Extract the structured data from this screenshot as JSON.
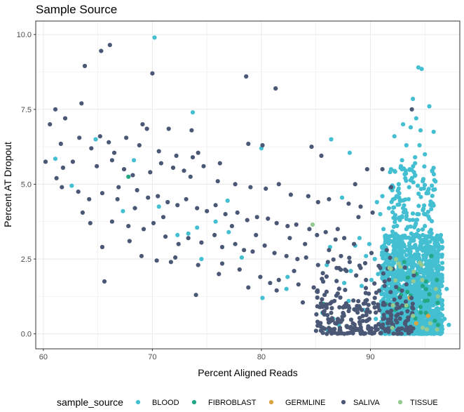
{
  "chart_data": {
    "type": "scatter",
    "title": "Sample Source",
    "xlabel": "Percent Aligned Reads",
    "ylabel": "Percent AT Dropout",
    "xlim": [
      59.3,
      98.2
    ],
    "ylim": [
      -0.5,
      10.45
    ],
    "x_ticks": [
      60,
      70,
      80,
      90
    ],
    "y_ticks": [
      0.0,
      2.5,
      5.0,
      7.5,
      10.0
    ],
    "y_tick_labels": [
      "0.0",
      "2.5",
      "5.0",
      "7.5",
      "10.0"
    ],
    "grid": true,
    "legend_position": "bottom",
    "legend_title": "sample_source",
    "series": [
      {
        "name": "BLOOD",
        "color": "#44bfd2",
        "points": [
          [
            70.2,
            9.9
          ],
          [
            94.4,
            8.9
          ],
          [
            94.7,
            8.85
          ],
          [
            93.9,
            7.85
          ],
          [
            95.4,
            7.6
          ],
          [
            73.7,
            7.4
          ],
          [
            93.0,
            7.0
          ],
          [
            94.6,
            6.8
          ],
          [
            95.8,
            6.75
          ],
          [
            92.2,
            6.6
          ],
          [
            64.8,
            6.5
          ],
          [
            86.4,
            6.5
          ],
          [
            93.3,
            6.3
          ],
          [
            95.0,
            6.0
          ],
          [
            92.9,
            5.8
          ],
          [
            94.1,
            5.7
          ],
          [
            80.0,
            6.2
          ],
          [
            88.1,
            6.05
          ],
          [
            61.1,
            5.85
          ],
          [
            93.6,
            5.5
          ],
          [
            94.0,
            5.4
          ],
          [
            93.2,
            5.2
          ],
          [
            92.6,
            5.0
          ],
          [
            94.8,
            5.1
          ],
          [
            68.3,
            5.8
          ],
          [
            62.6,
            4.95
          ],
          [
            95.3,
            4.7
          ],
          [
            92.4,
            4.6
          ],
          [
            91.1,
            4.6
          ],
          [
            87.4,
            4.55
          ],
          [
            67.3,
            4.1
          ],
          [
            70.6,
            4.25
          ],
          [
            76.9,
            4.45
          ],
          [
            95.6,
            4.3
          ],
          [
            91.7,
            4.2
          ],
          [
            93.0,
            4.2
          ],
          [
            94.3,
            4.0
          ],
          [
            90.6,
            4.4
          ],
          [
            93.6,
            3.8
          ],
          [
            89.0,
            3.2
          ],
          [
            75.8,
            3.75
          ],
          [
            74.1,
            3.55
          ],
          [
            73.3,
            3.35
          ],
          [
            77.0,
            3.4
          ],
          [
            72.3,
            3.3
          ],
          [
            89.9,
            3.0
          ],
          [
            86.3,
            2.9
          ],
          [
            88.6,
            2.95
          ],
          [
            92.1,
            3.1
          ],
          [
            94.8,
            3.3
          ],
          [
            91.5,
            2.8
          ],
          [
            90.4,
            2.5
          ],
          [
            89.6,
            2.6
          ],
          [
            74.5,
            2.5
          ],
          [
            78.2,
            2.55
          ],
          [
            86.0,
            2.3
          ],
          [
            88.2,
            2.1
          ],
          [
            90.7,
            2.0
          ],
          [
            89.2,
            1.6
          ],
          [
            82.3,
            1.5
          ],
          [
            87.6,
            1.7
          ],
          [
            90.1,
            1.8
          ],
          [
            91.8,
            1.5
          ],
          [
            92.4,
            1.2
          ],
          [
            93.1,
            0.9
          ],
          [
            92.0,
            0.6
          ],
          [
            93.8,
            0.4
          ],
          [
            94.6,
            0.2
          ],
          [
            95.6,
            0.1
          ],
          [
            96.4,
            0.05
          ],
          [
            91.3,
            0.3
          ],
          [
            90.5,
            0.5
          ],
          [
            89.4,
            0.8
          ],
          [
            88.0,
            1.1
          ],
          [
            87.1,
            0.3
          ],
          [
            86.6,
            0.5
          ],
          [
            85.6,
            0.7
          ],
          [
            86.1,
            0.1
          ],
          [
            89.1,
            0.05
          ],
          [
            96.8,
            0.5
          ],
          [
            97.2,
            0.3
          ],
          [
            96.1,
            1.2
          ],
          [
            97.0,
            1.5
          ],
          [
            96.6,
            2.2
          ],
          [
            95.2,
            2.8
          ],
          [
            96.4,
            2.9
          ],
          [
            91.2,
            3.5
          ],
          [
            92.7,
            3.8
          ],
          [
            93.3,
            3.5
          ],
          [
            95.0,
            3.6
          ],
          [
            82.4,
            1.9
          ],
          [
            80.1,
            1.2
          ],
          [
            90.9,
            4.0
          ],
          [
            93.5,
            4.5
          ],
          [
            92.1,
            4.9
          ],
          [
            94.1,
            5.9
          ],
          [
            94.5,
            6.3
          ],
          [
            93.7,
            6.9
          ],
          [
            94.2,
            7.2
          ],
          [
            91.9,
            5.5
          ],
          [
            92.8,
            5.6
          ]
        ]
      },
      {
        "name": "FIBROBLAST",
        "color": "#22a884",
        "points": [
          [
            67.8,
            5.25
          ],
          [
            85.7,
            1.0
          ],
          [
            95.1,
            0.7
          ],
          [
            95.6,
            2.6
          ],
          [
            93.4,
            1.4
          ],
          [
            94.2,
            2.0
          ],
          [
            92.6,
            1.5
          ],
          [
            96.1,
            1.8
          ],
          [
            94.6,
            0.9
          ],
          [
            93.1,
            2.4
          ],
          [
            92.8,
            1.3
          ],
          [
            95.0,
            1.1
          ],
          [
            91.4,
            1.0
          ],
          [
            96.2,
            0.3
          ],
          [
            94.8,
            1.6
          ],
          [
            92.3,
            0.8
          ]
        ]
      },
      {
        "name": "GERMLINE",
        "color": "#d9a441",
        "points": [
          [
            94.2,
            0.35
          ],
          [
            93.6,
            1.2
          ],
          [
            95.3,
            0.6
          ]
        ]
      },
      {
        "name": "SALIVA",
        "color": "#4a5876",
        "points": [
          [
            66.1,
            9.65
          ],
          [
            65.3,
            9.45
          ],
          [
            63.8,
            8.95
          ],
          [
            70.0,
            8.7
          ],
          [
            78.6,
            8.6
          ],
          [
            81.3,
            8.2
          ],
          [
            63.5,
            7.7
          ],
          [
            61.1,
            7.5
          ],
          [
            62.0,
            7.2
          ],
          [
            60.6,
            7.0
          ],
          [
            69.1,
            7.0
          ],
          [
            71.5,
            6.85
          ],
          [
            73.6,
            6.8
          ],
          [
            69.5,
            6.85
          ],
          [
            65.2,
            6.6
          ],
          [
            67.6,
            6.55
          ],
          [
            66.0,
            6.4
          ],
          [
            63.3,
            6.55
          ],
          [
            61.6,
            6.35
          ],
          [
            64.4,
            6.2
          ],
          [
            66.5,
            6.05
          ],
          [
            68.8,
            6.3
          ],
          [
            70.6,
            6.1
          ],
          [
            72.2,
            5.95
          ],
          [
            74.2,
            6.05
          ],
          [
            73.7,
            5.9
          ],
          [
            76.2,
            5.7
          ],
          [
            78.8,
            6.35
          ],
          [
            80.1,
            6.3
          ],
          [
            84.6,
            6.25
          ],
          [
            85.5,
            5.95
          ],
          [
            60.2,
            5.75
          ],
          [
            61.8,
            5.55
          ],
          [
            62.7,
            5.75
          ],
          [
            64.9,
            5.6
          ],
          [
            66.3,
            5.8
          ],
          [
            67.4,
            5.5
          ],
          [
            68.2,
            5.3
          ],
          [
            69.8,
            5.4
          ],
          [
            70.8,
            5.7
          ],
          [
            71.9,
            5.55
          ],
          [
            72.9,
            5.45
          ],
          [
            73.5,
            5.25
          ],
          [
            74.7,
            5.6
          ],
          [
            76.0,
            5.1
          ],
          [
            77.6,
            5.0
          ],
          [
            79.0,
            4.9
          ],
          [
            80.4,
            4.85
          ],
          [
            81.6,
            5.0
          ],
          [
            82.7,
            4.65
          ],
          [
            84.3,
            4.6
          ],
          [
            85.2,
            4.4
          ],
          [
            86.2,
            4.5
          ],
          [
            88.0,
            4.35
          ],
          [
            89.1,
            4.25
          ],
          [
            90.2,
            4.05
          ],
          [
            89.7,
            5.5
          ],
          [
            88.6,
            5.0
          ],
          [
            91.1,
            5.5
          ],
          [
            61.2,
            5.2
          ],
          [
            61.7,
            4.9
          ],
          [
            63.2,
            4.75
          ],
          [
            64.2,
            4.5
          ],
          [
            65.4,
            4.7
          ],
          [
            66.9,
            4.9
          ],
          [
            68.6,
            4.8
          ],
          [
            69.6,
            4.55
          ],
          [
            70.5,
            4.6
          ],
          [
            71.4,
            4.4
          ],
          [
            72.3,
            4.3
          ],
          [
            73.1,
            4.5
          ],
          [
            74.1,
            4.2
          ],
          [
            75.0,
            4.1
          ],
          [
            75.8,
            4.3
          ],
          [
            76.7,
            4.0
          ],
          [
            77.8,
            4.05
          ],
          [
            78.7,
            3.8
          ],
          [
            79.6,
            3.9
          ],
          [
            80.6,
            3.85
          ],
          [
            81.4,
            3.7
          ],
          [
            82.4,
            3.6
          ],
          [
            83.2,
            3.65
          ],
          [
            84.4,
            3.5
          ],
          [
            85.1,
            3.3
          ],
          [
            85.9,
            3.4
          ],
          [
            86.8,
            3.15
          ],
          [
            87.6,
            3.2
          ],
          [
            88.5,
            3.0
          ],
          [
            63.6,
            4.05
          ],
          [
            64.3,
            3.7
          ],
          [
            66.3,
            3.75
          ],
          [
            67.8,
            3.6
          ],
          [
            69.2,
            3.5
          ],
          [
            70.1,
            3.7
          ],
          [
            71.2,
            3.25
          ],
          [
            72.4,
            3.0
          ],
          [
            73.3,
            3.2
          ],
          [
            74.5,
            3.05
          ],
          [
            75.7,
            3.3
          ],
          [
            76.4,
            2.9
          ],
          [
            77.6,
            3.0
          ],
          [
            78.4,
            2.8
          ],
          [
            79.2,
            2.75
          ],
          [
            80.3,
            2.95
          ],
          [
            81.2,
            2.7
          ],
          [
            82.3,
            2.6
          ],
          [
            83.3,
            2.5
          ],
          [
            84.1,
            2.55
          ],
          [
            85.2,
            2.3
          ],
          [
            86.1,
            2.4
          ],
          [
            86.9,
            2.2
          ],
          [
            87.8,
            2.1
          ],
          [
            88.7,
            1.95
          ],
          [
            89.6,
            1.8
          ],
          [
            65.4,
            2.9
          ],
          [
            67.9,
            3.1
          ],
          [
            69.0,
            2.6
          ],
          [
            70.4,
            2.45
          ],
          [
            72.1,
            2.55
          ],
          [
            74.2,
            2.3
          ],
          [
            76.1,
            2.0
          ],
          [
            78.0,
            2.15
          ],
          [
            79.9,
            1.9
          ],
          [
            81.6,
            1.8
          ],
          [
            83.4,
            1.65
          ],
          [
            84.8,
            1.55
          ],
          [
            85.8,
            1.3
          ],
          [
            86.7,
            1.1
          ],
          [
            87.7,
            0.9
          ],
          [
            88.6,
            0.8
          ],
          [
            89.3,
            0.6
          ],
          [
            89.9,
            0.5
          ],
          [
            87.2,
            0.1
          ],
          [
            88.3,
            0.05
          ],
          [
            65.6,
            1.75
          ],
          [
            71.7,
            2.4
          ],
          [
            74.0,
            1.3
          ],
          [
            78.8,
            1.55
          ],
          [
            81.4,
            1.45
          ],
          [
            83.8,
            1.05
          ],
          [
            85.4,
            0.9
          ],
          [
            86.4,
            0.7
          ],
          [
            88.4,
            0.35
          ],
          [
            89.8,
            0.25
          ],
          [
            90.4,
            1.2
          ],
          [
            90.9,
            2.2
          ],
          [
            91.5,
            2.8
          ],
          [
            91.3,
            1.6
          ],
          [
            90.7,
            0.9
          ],
          [
            91.9,
            0.4
          ],
          [
            76.4,
            2.35
          ],
          [
            80.8,
            1.7
          ],
          [
            83.0,
            2.1
          ],
          [
            84.0,
            3.0
          ],
          [
            86.2,
            2.8
          ],
          [
            87.3,
            2.6
          ],
          [
            88.1,
            2.4
          ],
          [
            89.1,
            2.2
          ],
          [
            90.1,
            2.7
          ],
          [
            87.0,
            3.5
          ],
          [
            88.9,
            3.9
          ],
          [
            82.6,
            3.2
          ],
          [
            79.5,
            3.3
          ],
          [
            77.3,
            3.6
          ],
          [
            71.0,
            3.9
          ],
          [
            68.4,
            4.2
          ],
          [
            66.8,
            4.5
          ],
          [
            93.8,
            7.5
          ],
          [
            91.9,
            4.9
          ]
        ]
      },
      {
        "name": "TISSUE",
        "color": "#94c990",
        "points": [
          [
            84.7,
            3.65
          ],
          [
            92.0,
            0.2
          ],
          [
            95.5,
            0.35
          ],
          [
            93.3,
            0.95
          ],
          [
            96.0,
            1.5
          ],
          [
            94.7,
            2.3
          ],
          [
            92.6,
            2.35
          ],
          [
            95.2,
            0.15
          ],
          [
            93.9,
            0.6
          ]
        ]
      }
    ]
  }
}
